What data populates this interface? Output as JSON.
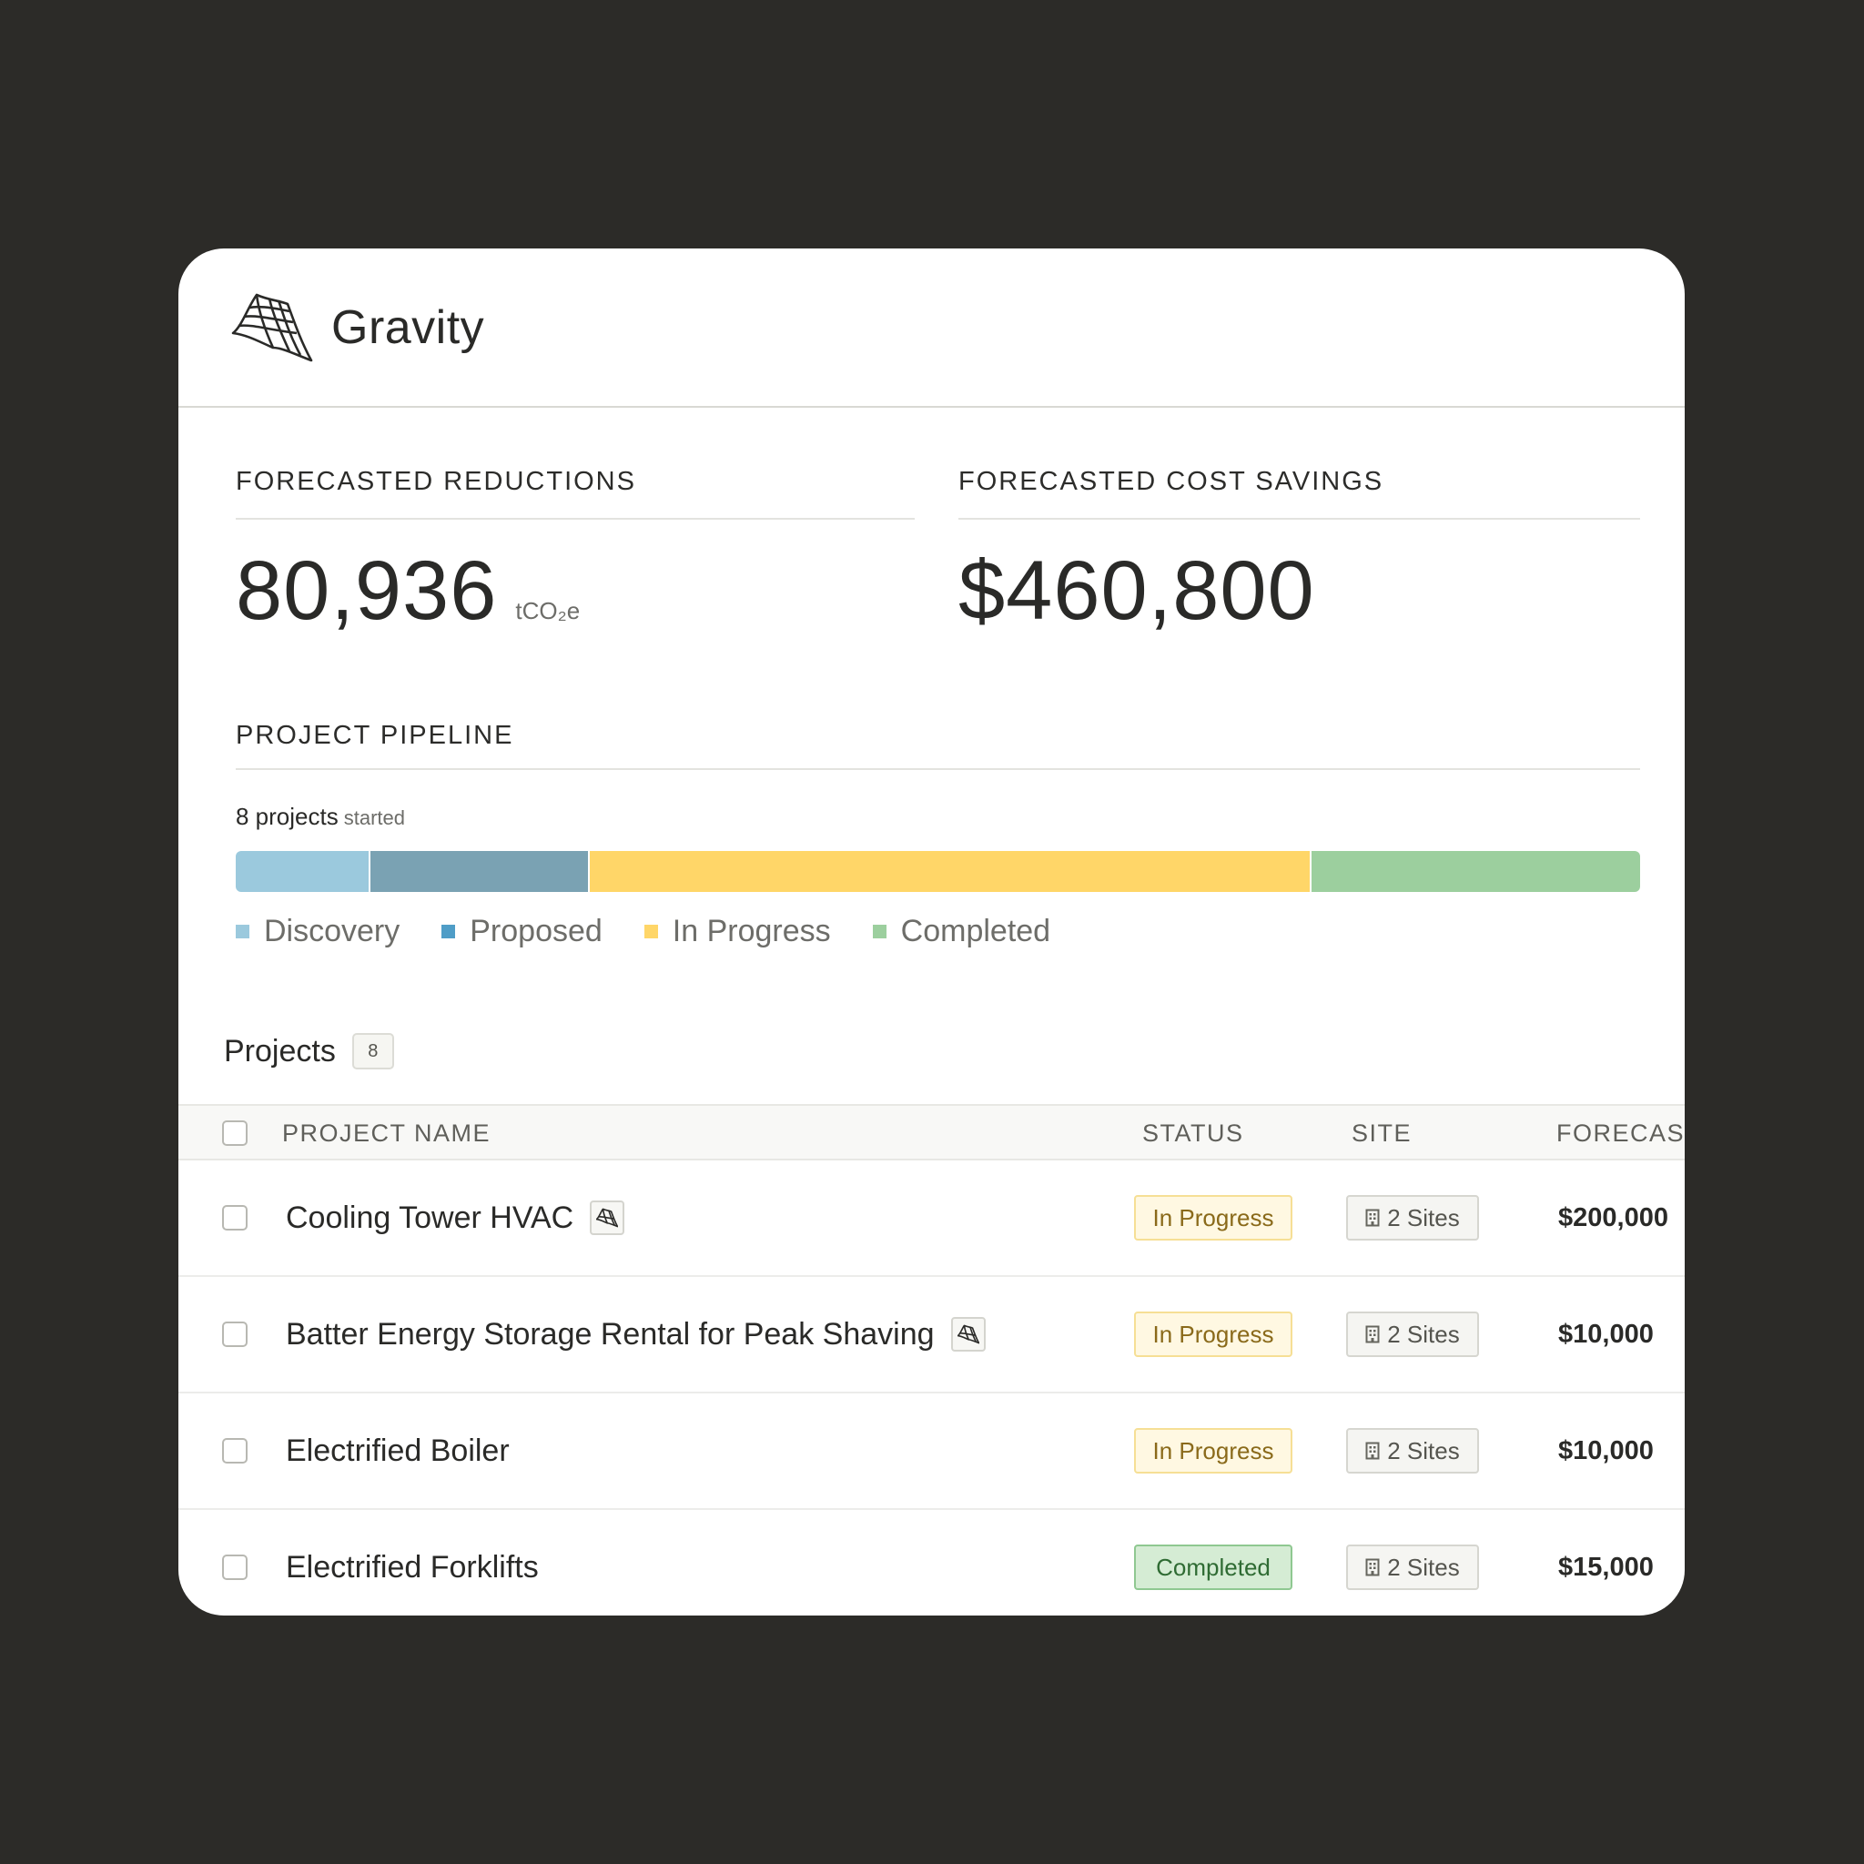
{
  "brand": {
    "name": "Gravity",
    "icon": "gravity-flag-logo-icon"
  },
  "stats": {
    "reductions": {
      "label": "FORECASTED REDUCTIONS",
      "value": "80,936",
      "unit": "tCO₂e"
    },
    "savings": {
      "label": "FORECASTED COST SAVINGS",
      "value": "$460,800"
    }
  },
  "pipeline": {
    "title": "PROJECT PIPELINE",
    "count": "8 projects",
    "count_suffix": "started",
    "segments_fraction": [
      0.096,
      0.156,
      0.514,
      0.234
    ],
    "legend": [
      {
        "label": "Discovery",
        "color": "#9bc9dd",
        "bar_color": "#9bc9dd"
      },
      {
        "label": "Proposed",
        "color": "#4f9dc7",
        "bar_color": "#7aa2b3"
      },
      {
        "label": "In Progress",
        "color": "#ffd668",
        "bar_color": "#ffd668"
      },
      {
        "label": "Completed",
        "color": "#9ccf9e",
        "bar_color": "#9ccf9e"
      }
    ]
  },
  "projects": {
    "title": "Projects",
    "count": "8",
    "columns": {
      "name": "PROJECT NAME",
      "status": "STATUS",
      "site": "SITE",
      "forecast": "FORECAST"
    },
    "rows": [
      {
        "name": "Cooling Tower HVAC",
        "has_icon": true,
        "status": "In Progress",
        "sites": "2 Sites",
        "forecast": "$200,000"
      },
      {
        "name": "Batter Energy Storage Rental for Peak Shaving",
        "has_icon": true,
        "status": "In Progress",
        "sites": "2 Sites",
        "forecast": "$10,000"
      },
      {
        "name": "Electrified Boiler",
        "has_icon": false,
        "status": "In Progress",
        "sites": "2 Sites",
        "forecast": "$10,000"
      },
      {
        "name": "Electrified Forklifts",
        "has_icon": false,
        "status": "Completed",
        "sites": "2 Sites",
        "forecast": "$15,000"
      }
    ],
    "status_colors": {
      "In Progress": {
        "bg": "#fff8e2",
        "border": "#f6df95",
        "text": "#8a6a1a"
      },
      "Completed": {
        "bg": "#d5ecd4",
        "border": "#8fc891",
        "text": "#2f6b33"
      }
    }
  }
}
